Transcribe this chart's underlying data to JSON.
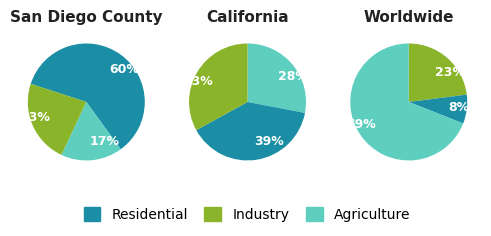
{
  "charts": [
    {
      "title": "San Diego County",
      "values": [
        60,
        17,
        23
      ],
      "labels": [
        "60%",
        "17%",
        "23%"
      ],
      "colors": [
        "#1b8ea6",
        "#5ecfbf",
        "#8ab52a"
      ],
      "startangle": 162,
      "counterclock": false
    },
    {
      "title": "California",
      "values": [
        28,
        39,
        33
      ],
      "labels": [
        "28%",
        "39%",
        "33%"
      ],
      "colors": [
        "#5ecfbf",
        "#1b8ea6",
        "#8ab52a"
      ],
      "startangle": 90,
      "counterclock": false
    },
    {
      "title": "Worldwide",
      "values": [
        23,
        8,
        69
      ],
      "labels": [
        "23%",
        "8%",
        "69%"
      ],
      "colors": [
        "#8ab52a",
        "#1b8ea6",
        "#5ecfbf"
      ],
      "startangle": 90,
      "counterclock": false
    }
  ],
  "legend": [
    {
      "label": "Residential",
      "color": "#1b8ea6"
    },
    {
      "label": "Industry",
      "color": "#8ab52a"
    },
    {
      "label": "Agriculture",
      "color": "#5ecfbf"
    }
  ],
  "bg_color": "#ffffff",
  "text_color": "#ffffff",
  "title_color": "#222222",
  "title_fontsize": 11,
  "label_fontsize": 9,
  "legend_fontsize": 10
}
